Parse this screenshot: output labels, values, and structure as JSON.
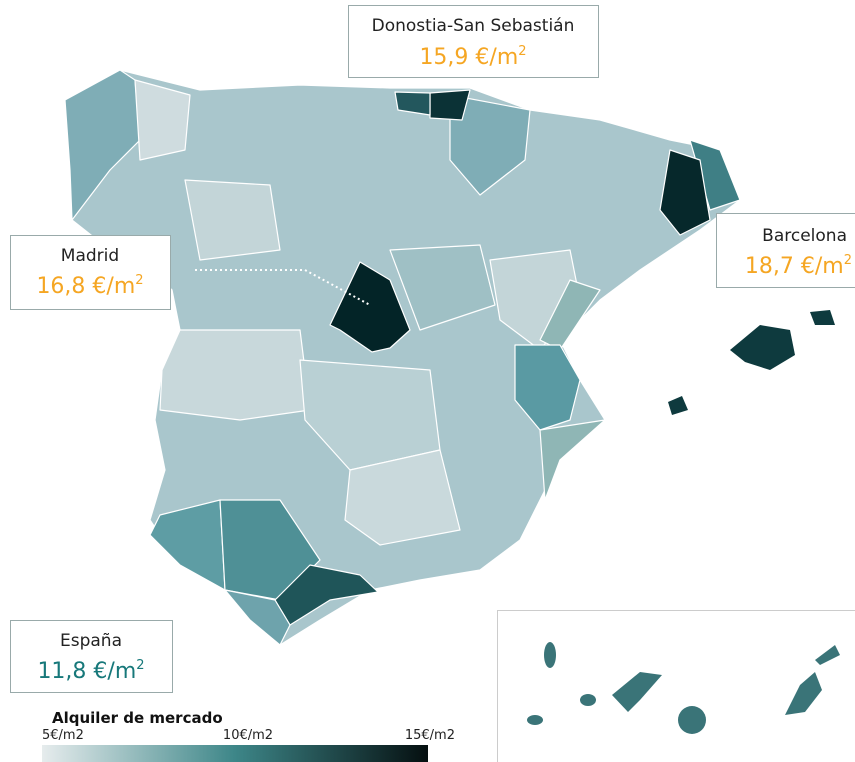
{
  "callouts": [
    {
      "name": "Donostia-San Sebastián",
      "value": "15,9",
      "unit": "€/m",
      "exponent": "2"
    },
    {
      "name": "Madrid",
      "value": "16,8",
      "unit": "€/m",
      "exponent": "2"
    },
    {
      "name": "Barcelona",
      "value": "18,7",
      "unit": "€/m",
      "exponent": "2"
    },
    {
      "name": "España",
      "value": "11,8",
      "unit": "€/m",
      "exponent": "2"
    }
  ],
  "legend": {
    "title": "Alquiler de mercado",
    "ticks": [
      "5€/m2",
      "10€/m2",
      "15€/m2"
    ]
  }
}
